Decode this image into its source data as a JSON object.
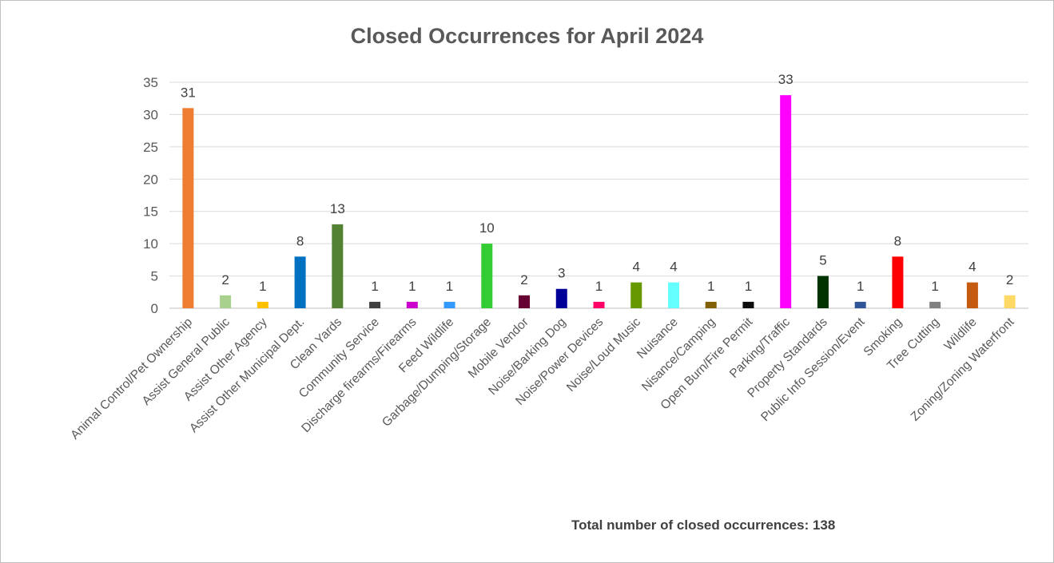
{
  "chart_data": {
    "type": "bar",
    "title": "Closed Occurrences for April 2024",
    "xlabel": "",
    "ylabel": "",
    "ylim": [
      0,
      35
    ],
    "yticks": [
      0,
      5,
      10,
      15,
      20,
      25,
      30,
      35
    ],
    "grid": true,
    "legend": "none",
    "categories": [
      "Animal Control/Pet Ownership",
      "Assist General Public",
      "Assist Other Agency",
      "Assist Other Municipal Dept.",
      "Clean Yards",
      "Community Service",
      "Discharge firearms/Firearms",
      "Feed Wildlife",
      "Garbage/Dumping/Storage",
      "Mobile Vendor",
      "Noise/Barking Dog",
      "Noise/Power Devices",
      "Noise/Loud Music",
      "Nuisance",
      "Nisance/Camping",
      "Open Burn/Fire Permit",
      "Parking/Traffic",
      "Property Standards",
      "Public Info Session/Event",
      "Smoking",
      "Tree Cutting",
      "Wildlife",
      "Zoning/Zoning Waterfront"
    ],
    "values": [
      31,
      2,
      1,
      8,
      13,
      1,
      1,
      1,
      10,
      2,
      3,
      1,
      4,
      4,
      1,
      1,
      33,
      5,
      1,
      8,
      1,
      4,
      2
    ],
    "colors": [
      "#ed7d31",
      "#a9d18e",
      "#ffc000",
      "#0070c0",
      "#548235",
      "#404040",
      "#cc00cc",
      "#3399ff",
      "#33cc33",
      "#660033",
      "#000099",
      "#ff0066",
      "#669900",
      "#66ffff",
      "#806000",
      "#0d0d0d",
      "#ff00ff",
      "#003300",
      "#2f5597",
      "#ff0000",
      "#808080",
      "#c55a11",
      "#ffd966"
    ]
  },
  "total_note": "Total number of closed occurrences: 138"
}
